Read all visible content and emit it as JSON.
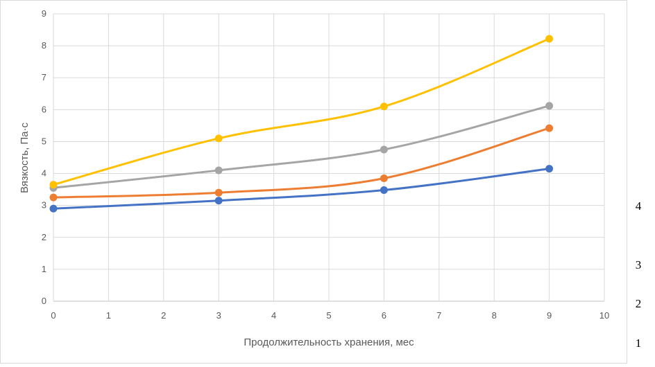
{
  "chart_data": {
    "type": "line",
    "xlabel": "Продолжительность хранения, мес",
    "ylabel": "Вязкость, Па·с",
    "xlim": [
      0,
      10
    ],
    "ylim": [
      0,
      9
    ],
    "x_ticks": [
      "0",
      "1",
      "2",
      "3",
      "4",
      "5",
      "6",
      "7",
      "8",
      "9",
      "10"
    ],
    "y_ticks": [
      "0",
      "1",
      "2",
      "3",
      "4",
      "5",
      "6",
      "7",
      "8",
      "9"
    ],
    "grid": true,
    "smooth": true,
    "x": [
      0,
      3,
      6,
      9
    ],
    "series": [
      {
        "label": "1",
        "color": "#4472C4",
        "values": [
          2.9,
          3.15,
          3.48,
          4.15
        ]
      },
      {
        "label": "2",
        "color": "#ED7D31",
        "values": [
          3.25,
          3.4,
          3.85,
          5.42
        ]
      },
      {
        "label": "3",
        "color": "#A5A5A5",
        "values": [
          3.55,
          4.1,
          4.75,
          6.12
        ]
      },
      {
        "label": "4",
        "color": "#FFC000",
        "values": [
          3.65,
          5.1,
          6.1,
          8.22
        ]
      }
    ],
    "side_labels": [
      "4",
      "3",
      "2",
      "1"
    ]
  }
}
